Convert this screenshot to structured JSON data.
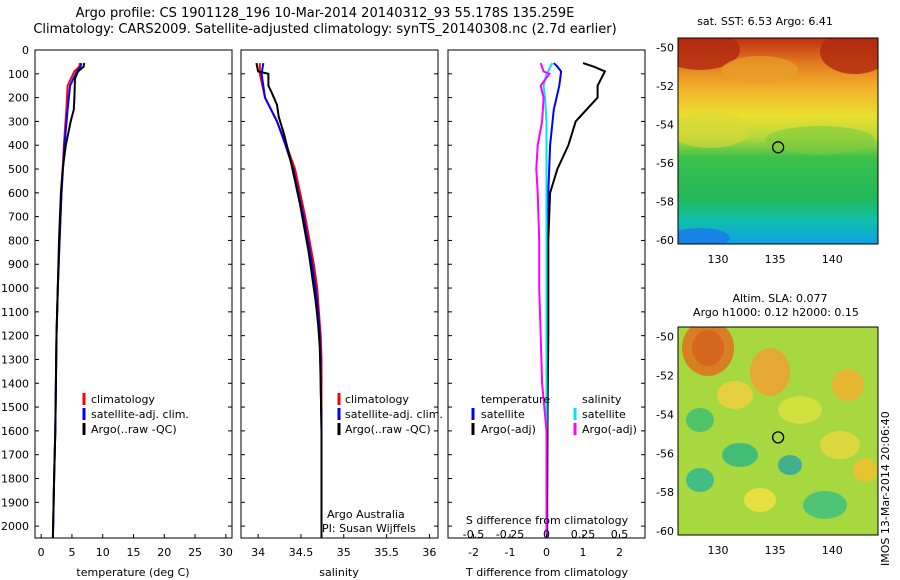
{
  "header": {
    "title_line1": "Argo profile: CS 1901128_196 10-Mar-2014 20140312_93 55.178S 135.259E",
    "title_line2": "Climatology: CARS2009. Satellite-adjusted climatology: synTS_20140308.nc (2.7d earlier)"
  },
  "colors": {
    "climatology": "#ff0000",
    "satellite_adj": "#0000ff",
    "argo": "#000000",
    "sal_satellite": "#00e5ee",
    "sal_argo": "#ff00ff"
  },
  "chart_data": [
    {
      "id": "temperature",
      "type": "line",
      "xlabel": "temperature (deg C)",
      "ylim": [
        2050,
        0
      ],
      "xlim": [
        -1,
        31
      ],
      "xticks": [
        0,
        5,
        10,
        15,
        20,
        25,
        30
      ],
      "yticks": [
        0,
        100,
        200,
        300,
        400,
        500,
        600,
        700,
        800,
        900,
        1000,
        1100,
        1200,
        1300,
        1400,
        1500,
        1600,
        1700,
        1800,
        1900,
        2000
      ],
      "legend": [
        "climatology",
        "satellite-adj. clim.",
        "Argo(..raw -QC)"
      ],
      "series": [
        {
          "name": "climatology",
          "color": "#ff0000",
          "depth": [
            55,
            70,
            90,
            150,
            250,
            400,
            600,
            800,
            1000,
            1200,
            1400,
            1600,
            1800,
            2050
          ],
          "values": [
            6.3,
            6.2,
            5.4,
            4.3,
            4.1,
            3.7,
            3.3,
            3.0,
            2.7,
            2.5,
            2.4,
            2.3,
            2.1,
            1.9
          ]
        },
        {
          "name": "satellite-adj. clim.",
          "color": "#0000ff",
          "depth": [
            55,
            70,
            90,
            150,
            250,
            400,
            600,
            800,
            1000,
            1200,
            1400,
            1600,
            1800,
            2050
          ],
          "values": [
            6.5,
            6.4,
            5.8,
            4.7,
            4.3,
            3.8,
            3.3,
            3.0,
            2.7,
            2.5,
            2.4,
            2.3,
            2.1,
            1.9
          ]
        },
        {
          "name": "Argo(..raw -QC)",
          "color": "#000000",
          "depth": [
            55,
            70,
            90,
            120,
            200,
            250,
            300,
            400,
            500,
            600,
            800,
            1000,
            1200,
            1400,
            1600,
            1800,
            2050
          ],
          "values": [
            7.0,
            6.9,
            6.0,
            5.5,
            5.4,
            5.3,
            4.8,
            4.0,
            3.5,
            3.2,
            2.9,
            2.7,
            2.5,
            2.4,
            2.3,
            2.1,
            1.9
          ]
        }
      ]
    },
    {
      "id": "salinity",
      "type": "line",
      "xlabel": "salinity",
      "ylim": [
        2050,
        0
      ],
      "xlim": [
        33.8,
        36.1
      ],
      "xticks": [
        34,
        34.5,
        35,
        35.5,
        36
      ],
      "legend": [
        "climatology",
        "satellite-adj. clim.",
        "Argo(..raw -QC)"
      ],
      "annotation": [
        "Argo Australia",
        "PI: Susan Wijffels"
      ],
      "series": [
        {
          "name": "climatology",
          "color": "#ff0000",
          "depth": [
            55,
            100,
            200,
            300,
            400,
            500,
            600,
            700,
            800,
            900,
            1000,
            1100,
            1200,
            1300,
            1400,
            1600,
            1800,
            2050
          ],
          "values": [
            34.02,
            34.02,
            34.08,
            34.22,
            34.33,
            34.43,
            34.49,
            34.55,
            34.6,
            34.65,
            34.69,
            34.71,
            34.73,
            34.74,
            34.74,
            34.74,
            34.74,
            34.74
          ]
        },
        {
          "name": "satellite-adj. clim.",
          "color": "#0000ff",
          "depth": [
            55,
            100,
            200,
            300,
            400,
            500,
            600,
            700,
            800,
            900,
            1000,
            1100,
            1200,
            1300,
            1400,
            1600,
            1800,
            2050
          ],
          "values": [
            34.06,
            34.04,
            34.08,
            34.22,
            34.32,
            34.41,
            34.47,
            34.53,
            34.58,
            34.63,
            34.67,
            34.7,
            34.72,
            34.73,
            34.73,
            34.74,
            34.74,
            34.74
          ]
        },
        {
          "name": "Argo(..raw -QC)",
          "color": "#000000",
          "depth": [
            55,
            90,
            100,
            150,
            180,
            230,
            280,
            350,
            450,
            550,
            650,
            750,
            850,
            950,
            1050,
            1150,
            1250,
            1400,
            1600,
            1800,
            2050
          ],
          "values": [
            33.98,
            34.0,
            34.12,
            34.12,
            34.16,
            34.22,
            34.24,
            34.3,
            34.37,
            34.43,
            34.49,
            34.54,
            34.59,
            34.63,
            34.67,
            34.7,
            34.72,
            34.73,
            34.74,
            34.74,
            34.74
          ]
        }
      ]
    },
    {
      "id": "differences",
      "type": "line",
      "xlabel": "T difference from climatology",
      "xlabel_top": "S difference from climatology",
      "xlim": [
        -2.7,
        2.7
      ],
      "t_ticks": [
        -2,
        -1,
        0,
        1,
        2
      ],
      "s_tick_labels": [
        "-0.5",
        "-0.25",
        "0",
        "0.25",
        "0.5"
      ],
      "s_ticks": [
        -0.5,
        -0.25,
        0,
        0.25,
        0.5
      ],
      "legend": {
        "temperature": "temperature",
        "salinity": "salinity",
        "satellite": "satellite",
        "argo": "Argo(-adj)"
      },
      "series": [
        {
          "name": "temperature satellite",
          "color": "#0000ff",
          "depth": [
            55,
            70,
            90,
            150,
            250,
            400,
            600,
            1000,
            1500,
            2050
          ],
          "values": [
            0.2,
            0.3,
            0.4,
            0.35,
            0.2,
            0.1,
            0.05,
            0.03,
            0.02,
            0.02
          ]
        },
        {
          "name": "temperature Argo(-adj)",
          "color": "#000000",
          "depth": [
            55,
            70,
            90,
            120,
            150,
            200,
            300,
            400,
            500,
            600,
            800,
            1000,
            1200,
            1500,
            1800,
            2050
          ],
          "values": [
            1.0,
            1.3,
            1.6,
            1.5,
            1.4,
            1.4,
            0.8,
            0.6,
            0.3,
            0.1,
            0.05,
            0.05,
            0.05,
            0.03,
            0.02,
            0.0
          ]
        },
        {
          "name": "salinity satellite",
          "color": "#00e5ee",
          "depth": [
            55,
            80,
            100,
            150,
            200,
            300,
            400,
            600,
            800,
            1000,
            1300,
            1600,
            2050
          ],
          "values": [
            0.04,
            0.02,
            0.0,
            -0.02,
            -0.01,
            0.0,
            0.0,
            0.0,
            0.0,
            0.0,
            0.0,
            0.0,
            0.0
          ]
        },
        {
          "name": "salinity Argo(-adj)",
          "color": "#ff00ff",
          "depth": [
            55,
            90,
            100,
            150,
            200,
            300,
            400,
            500,
            600,
            800,
            1000,
            1200,
            1400,
            1600,
            2050
          ],
          "values": [
            -0.04,
            -0.02,
            0.02,
            -0.04,
            -0.02,
            -0.03,
            -0.06,
            -0.07,
            -0.06,
            -0.05,
            -0.05,
            -0.04,
            -0.03,
            0.0,
            0.0
          ]
        }
      ]
    },
    {
      "id": "sst_map",
      "type": "heatmap",
      "title": "sat. SST: 6.53  Argo: 6.41",
      "xticks": [
        130,
        135,
        140
      ],
      "yticks": [
        -50,
        -52,
        -54,
        -56,
        -58,
        -60
      ],
      "xlim": [
        126.5,
        144
      ],
      "ylim": [
        -60.2,
        -49.5
      ],
      "marker": {
        "lon": 135.259,
        "lat": -55.178
      }
    },
    {
      "id": "sla_map",
      "type": "heatmap",
      "title_line1": "Altim. SLA: 0.077",
      "title_line2": "Argo h1000: 0.12 h2000: 0.15",
      "xticks": [
        130,
        135,
        140
      ],
      "yticks": [
        -50,
        -52,
        -54,
        -56,
        -58,
        -60
      ],
      "xlim": [
        126.5,
        144
      ],
      "ylim": [
        -60.2,
        -49.5
      ],
      "marker": {
        "lon": 135.259,
        "lat": -55.178
      }
    }
  ],
  "footer": {
    "stamp": "IMOS 13-Mar-2014 20:06:40"
  }
}
